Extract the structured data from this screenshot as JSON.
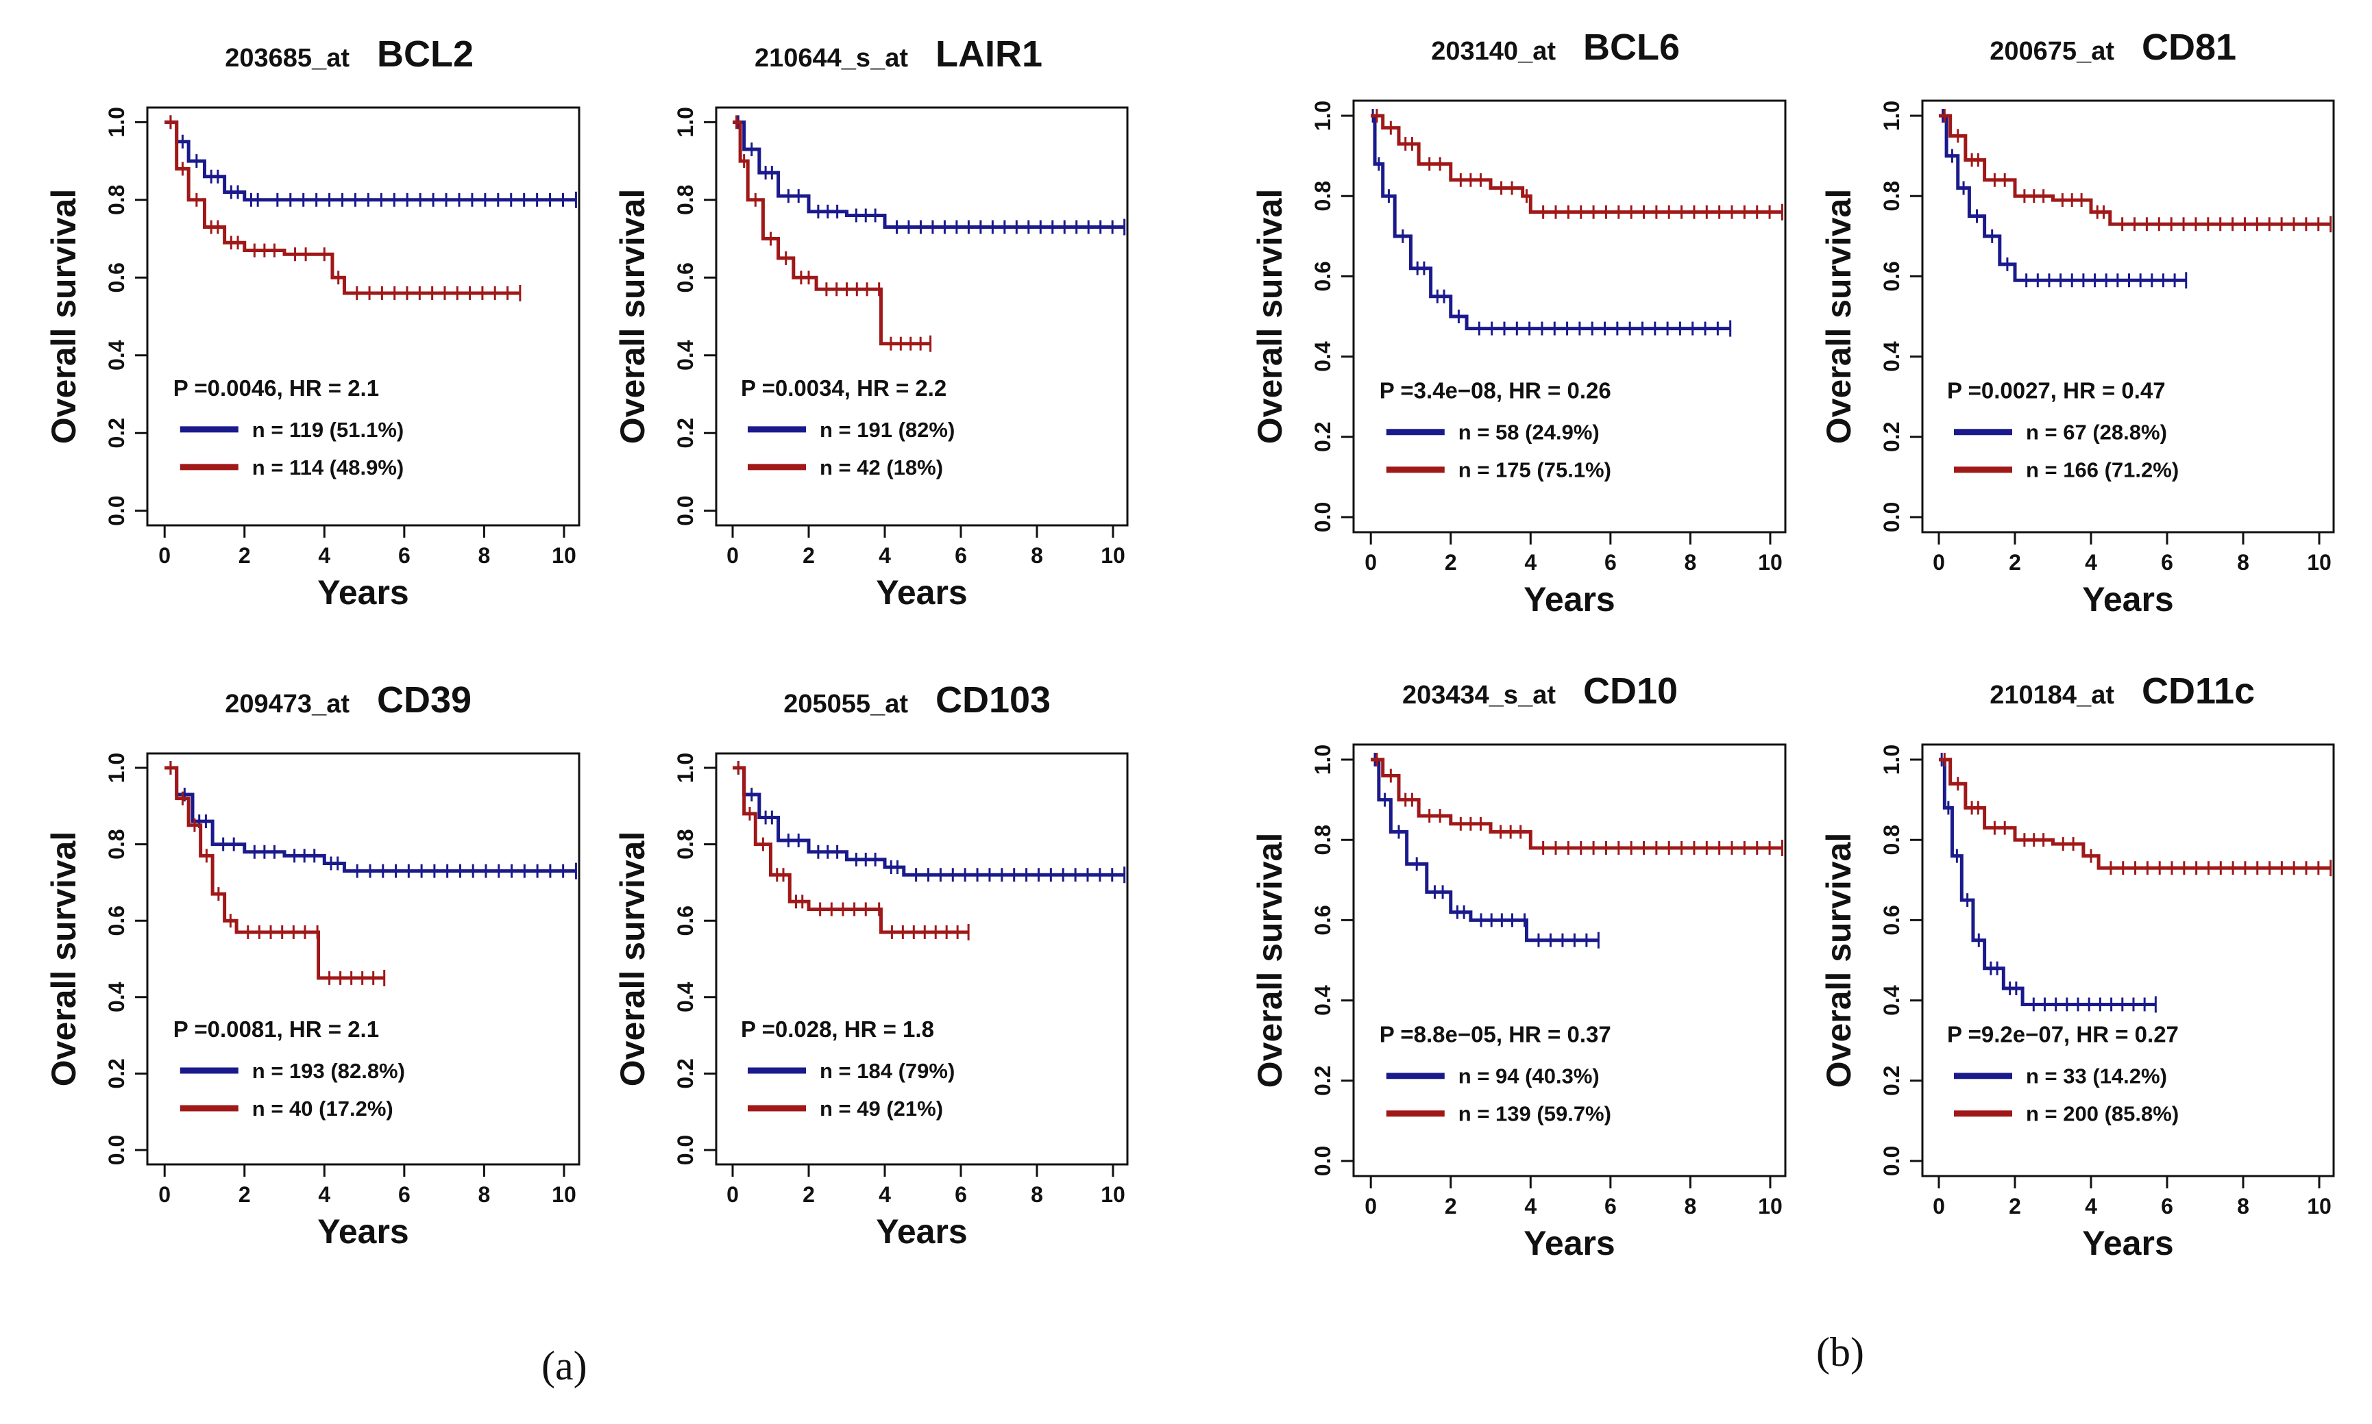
{
  "figure": {
    "panel_labels": [
      {
        "id": "a",
        "text": "(a)"
      },
      {
        "id": "b",
        "text": "(b)"
      }
    ],
    "colors": {
      "blue": "#1a1a8c",
      "red": "#a01818",
      "axis": "#111111"
    }
  },
  "chart_data": [
    {
      "type": "line",
      "panel": "a",
      "probe": "203685_at",
      "gene": "BCL2",
      "xlabel": "Years",
      "ylabel": "Overall survival",
      "xlim": [
        0,
        10
      ],
      "ylim": [
        0,
        1
      ],
      "xticks": [
        "0",
        "2",
        "4",
        "6",
        "8",
        "10"
      ],
      "yticks": [
        "0.0",
        "0.2",
        "0.4",
        "0.6",
        "0.8",
        "1.0"
      ],
      "stats": "P =0.0046, HR = 2.1",
      "series": [
        {
          "name": "n = 119 (51.1%)",
          "color": "blue",
          "x": [
            0,
            0.3,
            0.6,
            1.0,
            1.5,
            2.0,
            2.5,
            10.3
          ],
          "y": [
            1.0,
            0.95,
            0.9,
            0.86,
            0.82,
            0.8,
            0.8,
            0.8
          ]
        },
        {
          "name": "n = 114 (48.9%)",
          "color": "red",
          "x": [
            0,
            0.3,
            0.6,
            1.0,
            1.5,
            2.0,
            3.0,
            3.8,
            4.2,
            4.5,
            8.9
          ],
          "y": [
            1.0,
            0.88,
            0.8,
            0.73,
            0.69,
            0.67,
            0.66,
            0.66,
            0.6,
            0.56,
            0.56
          ]
        }
      ]
    },
    {
      "type": "line",
      "panel": "a",
      "probe": "210644_s_at",
      "gene": "LAIR1",
      "xlabel": "Years",
      "ylabel": "Overall survival",
      "xlim": [
        0,
        10
      ],
      "ylim": [
        0,
        1
      ],
      "xticks": [
        "0",
        "2",
        "4",
        "6",
        "8",
        "10"
      ],
      "yticks": [
        "0.0",
        "0.2",
        "0.4",
        "0.6",
        "0.8",
        "1.0"
      ],
      "stats": "P =0.0034, HR = 2.2",
      "series": [
        {
          "name": "n = 191 (82%)",
          "color": "blue",
          "x": [
            0,
            0.3,
            0.7,
            1.2,
            2.0,
            3.0,
            4.0,
            10.3
          ],
          "y": [
            1.0,
            0.93,
            0.87,
            0.81,
            0.77,
            0.76,
            0.73,
            0.73
          ]
        },
        {
          "name": "n = 42 (18%)",
          "color": "red",
          "x": [
            0,
            0.2,
            0.4,
            0.8,
            1.2,
            1.6,
            2.2,
            3.8,
            3.9,
            5.2
          ],
          "y": [
            1.0,
            0.9,
            0.8,
            0.7,
            0.65,
            0.6,
            0.57,
            0.57,
            0.43,
            0.43
          ]
        }
      ]
    },
    {
      "type": "line",
      "panel": "a",
      "probe": "209473_at",
      "gene": "CD39",
      "xlabel": "Years",
      "ylabel": "Overall survival",
      "xlim": [
        0,
        10
      ],
      "ylim": [
        0,
        1
      ],
      "xticks": [
        "0",
        "2",
        "4",
        "6",
        "8",
        "10"
      ],
      "yticks": [
        "0.0",
        "0.2",
        "0.4",
        "0.6",
        "0.8",
        "1.0"
      ],
      "stats": "P =0.0081, HR = 2.1",
      "series": [
        {
          "name": "n = 193 (82.8%)",
          "color": "blue",
          "x": [
            0,
            0.3,
            0.7,
            1.2,
            2.0,
            3.0,
            4.0,
            4.5,
            10.3
          ],
          "y": [
            1.0,
            0.93,
            0.86,
            0.8,
            0.78,
            0.77,
            0.75,
            0.73,
            0.73
          ]
        },
        {
          "name": "n = 40 (17.2%)",
          "color": "red",
          "x": [
            0,
            0.3,
            0.6,
            0.9,
            1.2,
            1.5,
            1.8,
            3.8,
            3.85,
            5.5
          ],
          "y": [
            1.0,
            0.92,
            0.85,
            0.77,
            0.67,
            0.6,
            0.57,
            0.57,
            0.45,
            0.45
          ]
        }
      ]
    },
    {
      "type": "line",
      "panel": "a",
      "probe": "205055_at",
      "gene": "CD103",
      "xlabel": "Years",
      "ylabel": "Overall survival",
      "xlim": [
        0,
        10
      ],
      "ylim": [
        0,
        1
      ],
      "xticks": [
        "0",
        "2",
        "4",
        "6",
        "8",
        "10"
      ],
      "yticks": [
        "0.0",
        "0.2",
        "0.4",
        "0.6",
        "0.8",
        "1.0"
      ],
      "stats": "P =0.028, HR = 1.8",
      "series": [
        {
          "name": "n = 184 (79%)",
          "color": "blue",
          "x": [
            0,
            0.3,
            0.7,
            1.2,
            2.0,
            3.0,
            4.0,
            4.5,
            10.3
          ],
          "y": [
            1.0,
            0.93,
            0.87,
            0.81,
            0.78,
            0.76,
            0.74,
            0.72,
            0.72
          ]
        },
        {
          "name": "n = 49 (21%)",
          "color": "red",
          "x": [
            0,
            0.3,
            0.6,
            1.0,
            1.5,
            2.0,
            3.8,
            3.9,
            6.2
          ],
          "y": [
            1.0,
            0.88,
            0.8,
            0.72,
            0.65,
            0.63,
            0.63,
            0.57,
            0.57
          ]
        }
      ]
    },
    {
      "type": "line",
      "panel": "b",
      "probe": "203140_at",
      "gene": "BCL6",
      "xlabel": "Years",
      "ylabel": "Overall survival",
      "xlim": [
        0,
        10
      ],
      "ylim": [
        0,
        1
      ],
      "xticks": [
        "0",
        "2",
        "4",
        "6",
        "8",
        "10"
      ],
      "yticks": [
        "0.0",
        "0.2",
        "0.4",
        "0.6",
        "0.8",
        "1.0"
      ],
      "stats": "P =3.4e−08, HR = 0.26",
      "series": [
        {
          "name": "n = 58 (24.9%)",
          "color": "blue",
          "x": [
            0,
            0.1,
            0.3,
            0.6,
            1.0,
            1.5,
            2.0,
            2.4,
            9.0
          ],
          "y": [
            1.0,
            0.88,
            0.8,
            0.7,
            0.62,
            0.55,
            0.5,
            0.47,
            0.47
          ]
        },
        {
          "name": "n = 175 (75.1%)",
          "color": "red",
          "x": [
            0,
            0.3,
            0.7,
            1.2,
            2.0,
            3.0,
            3.8,
            4.0,
            10.3
          ],
          "y": [
            1.0,
            0.97,
            0.93,
            0.88,
            0.84,
            0.82,
            0.8,
            0.76,
            0.76
          ]
        }
      ]
    },
    {
      "type": "line",
      "panel": "b",
      "probe": "200675_at",
      "gene": "CD81",
      "xlabel": "Years",
      "ylabel": "Overall survival",
      "xlim": [
        0,
        10
      ],
      "ylim": [
        0,
        1
      ],
      "xticks": [
        "0",
        "2",
        "4",
        "6",
        "8",
        "10"
      ],
      "yticks": [
        "0.0",
        "0.2",
        "0.4",
        "0.6",
        "0.8",
        "1.0"
      ],
      "stats": "P =0.0027, HR = 0.47",
      "series": [
        {
          "name": "n = 67 (28.8%)",
          "color": "blue",
          "x": [
            0,
            0.2,
            0.5,
            0.8,
            1.2,
            1.6,
            2.0,
            6.5
          ],
          "y": [
            1.0,
            0.9,
            0.82,
            0.75,
            0.7,
            0.63,
            0.59,
            0.59
          ]
        },
        {
          "name": "n = 166 (71.2%)",
          "color": "red",
          "x": [
            0,
            0.3,
            0.7,
            1.2,
            2.0,
            3.0,
            4.0,
            4.5,
            10.3
          ],
          "y": [
            1.0,
            0.95,
            0.89,
            0.84,
            0.8,
            0.79,
            0.76,
            0.73,
            0.73
          ]
        }
      ]
    },
    {
      "type": "line",
      "panel": "b",
      "probe": "203434_s_at",
      "gene": "CD10",
      "xlabel": "Years",
      "ylabel": "Overall survival",
      "xlim": [
        0,
        10
      ],
      "ylim": [
        0,
        1
      ],
      "xticks": [
        "0",
        "2",
        "4",
        "6",
        "8",
        "10"
      ],
      "yticks": [
        "0.0",
        "0.2",
        "0.4",
        "0.6",
        "0.8",
        "1.0"
      ],
      "stats": "P =8.8e−05, HR = 0.37",
      "series": [
        {
          "name": "n = 94 (40.3%)",
          "color": "blue",
          "x": [
            0,
            0.2,
            0.5,
            0.9,
            1.4,
            2.0,
            2.5,
            3.8,
            3.9,
            5.7
          ],
          "y": [
            1.0,
            0.9,
            0.82,
            0.74,
            0.67,
            0.62,
            0.6,
            0.6,
            0.55,
            0.55
          ]
        },
        {
          "name": "n = 139 (59.7%)",
          "color": "red",
          "x": [
            0,
            0.3,
            0.7,
            1.2,
            2.0,
            3.0,
            4.0,
            10.3
          ],
          "y": [
            1.0,
            0.96,
            0.9,
            0.86,
            0.84,
            0.82,
            0.78,
            0.78
          ]
        }
      ]
    },
    {
      "type": "line",
      "panel": "b",
      "probe": "210184_at",
      "gene": "CD11c",
      "xlabel": "Years",
      "ylabel": "Overall survival",
      "xlim": [
        0,
        10
      ],
      "ylim": [
        0,
        1
      ],
      "xticks": [
        "0",
        "2",
        "4",
        "6",
        "8",
        "10"
      ],
      "yticks": [
        "0.0",
        "0.2",
        "0.4",
        "0.6",
        "0.8",
        "1.0"
      ],
      "stats": "P =9.2e−07, HR = 0.27",
      "series": [
        {
          "name": "n = 33 (14.2%)",
          "color": "blue",
          "x": [
            0,
            0.15,
            0.35,
            0.6,
            0.9,
            1.2,
            1.7,
            2.2,
            5.7
          ],
          "y": [
            1.0,
            0.88,
            0.76,
            0.65,
            0.55,
            0.48,
            0.43,
            0.39,
            0.39
          ]
        },
        {
          "name": "n = 200 (85.8%)",
          "color": "red",
          "x": [
            0,
            0.3,
            0.7,
            1.2,
            2.0,
            3.0,
            3.8,
            4.2,
            10.3
          ],
          "y": [
            1.0,
            0.94,
            0.88,
            0.83,
            0.8,
            0.79,
            0.76,
            0.73,
            0.73
          ]
        }
      ]
    }
  ]
}
